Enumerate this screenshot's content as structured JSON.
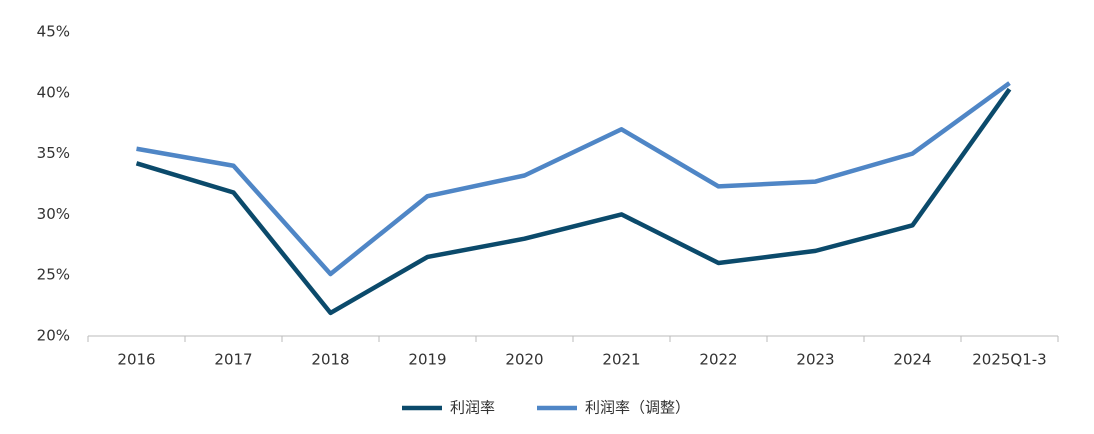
{
  "chart_data": {
    "type": "line",
    "categories": [
      "2016",
      "2017",
      "2018",
      "2019",
      "2020",
      "2021",
      "2022",
      "2023",
      "2024",
      "2025Q1-3"
    ],
    "series": [
      {
        "name": "利润率",
        "color": "#0b4a6b",
        "values": [
          34.2,
          31.8,
          21.9,
          26.5,
          28.0,
          30.0,
          26.0,
          27.0,
          29.1,
          40.3
        ]
      },
      {
        "name": "利润率（调整）",
        "color": "#4f86c6",
        "values": [
          35.4,
          34.0,
          25.1,
          31.5,
          33.2,
          37.0,
          32.3,
          32.7,
          35.0,
          40.8
        ]
      }
    ],
    "ylim": [
      20,
      45
    ],
    "yticks": [
      {
        "value": 20,
        "label": "20%"
      },
      {
        "value": 25,
        "label": "25%"
      },
      {
        "value": 30,
        "label": "30%"
      },
      {
        "value": 35,
        "label": "35%"
      },
      {
        "value": 40,
        "label": "40%"
      },
      {
        "value": 45,
        "label": "45%"
      }
    ],
    "grid": false,
    "legend": "bottom"
  }
}
